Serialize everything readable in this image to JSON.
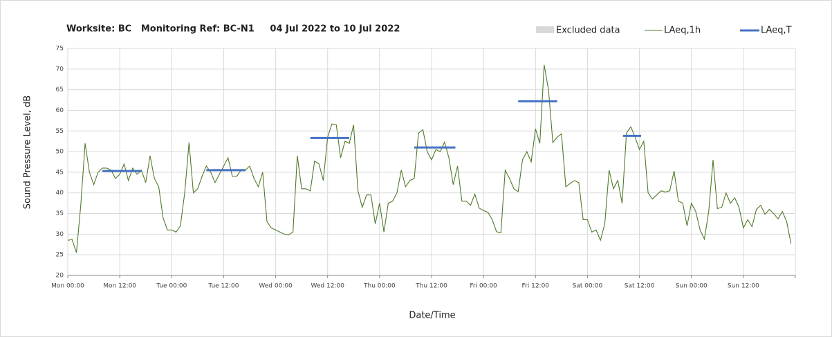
{
  "chart_data": {
    "type": "line",
    "title": "Worksite: BC   Monitoring Ref: BC-N1     04 Jul 2022 to 10 Jul 2022",
    "x_label": "Date/Time",
    "y_label": "Sound Pressure Level, dB",
    "excluded_legend": {
      "name": "Excluded data",
      "color": "#d9d9d9"
    },
    "xlim": [
      0,
      168
    ],
    "xticks": [
      {
        "value": 0,
        "label": "Mon 00:00"
      },
      {
        "value": 12,
        "label": "Mon 12:00"
      },
      {
        "value": 24,
        "label": "Tue 00:00"
      },
      {
        "value": 36,
        "label": "Tue 12:00"
      },
      {
        "value": 48,
        "label": "Wed 00:00"
      },
      {
        "value": 60,
        "label": "Wed 12:00"
      },
      {
        "value": 72,
        "label": "Thu 00:00"
      },
      {
        "value": 84,
        "label": "Thu 12:00"
      },
      {
        "value": 96,
        "label": "Fri 00:00"
      },
      {
        "value": 108,
        "label": "Fri 12:00"
      },
      {
        "value": 120,
        "label": "Sat 00:00"
      },
      {
        "value": 132,
        "label": "Sat 12:00"
      },
      {
        "value": 144,
        "label": "Sun 00:00"
      },
      {
        "value": 156,
        "label": "Sun 12:00"
      },
      168
    ],
    "ylim": [
      20,
      75
    ],
    "yticks": [
      20,
      25,
      30,
      35,
      40,
      45,
      50,
      55,
      60,
      65,
      70,
      75
    ],
    "grid": true,
    "series": [
      {
        "name": "LAeq,1h",
        "color": "#4f7a28",
        "x": [
          0,
          1,
          2,
          3,
          4,
          5,
          6,
          7,
          8,
          9,
          10,
          11,
          12,
          13,
          14,
          15,
          16,
          17,
          18,
          19,
          20,
          21,
          22,
          23,
          24,
          25,
          26,
          27,
          28,
          29,
          30,
          31,
          32,
          33,
          34,
          35,
          36,
          37,
          38,
          39,
          40,
          41,
          42,
          43,
          44,
          45,
          46,
          47,
          48,
          49,
          50,
          51,
          52,
          53,
          54,
          55,
          56,
          57,
          58,
          59,
          60,
          61,
          62,
          63,
          64,
          65,
          66,
          67,
          68,
          69,
          70,
          71,
          72,
          73,
          74,
          75,
          76,
          77,
          78,
          79,
          80,
          81,
          82,
          83,
          84,
          85,
          86,
          87,
          88,
          89,
          90,
          91,
          92,
          93,
          94,
          95,
          96,
          97,
          98,
          99,
          100,
          101,
          102,
          103,
          104,
          105,
          106,
          107,
          108,
          109,
          110,
          111,
          112,
          113,
          114,
          115,
          116,
          117,
          118,
          119,
          120,
          121,
          122,
          123,
          124,
          125,
          126,
          127,
          128,
          129,
          130,
          131,
          132,
          133,
          134,
          135,
          136,
          137,
          138,
          139,
          140,
          141,
          142,
          143,
          144,
          145,
          146,
          147,
          148,
          149,
          150,
          151,
          152,
          153,
          154,
          155,
          156,
          157,
          158,
          159,
          160,
          161,
          162,
          163,
          164,
          165,
          166,
          167
        ],
        "values": [
          28.5,
          28.7,
          25.5,
          37,
          52,
          45,
          42,
          45,
          46,
          46,
          45.5,
          43.5,
          44.5,
          47,
          43,
          46,
          44.5,
          45.5,
          42.5,
          49,
          43.5,
          41.5,
          34,
          31,
          31,
          30.5,
          32,
          40,
          52.2,
          40,
          41,
          44,
          46.5,
          45,
          42.5,
          44.5,
          46.5,
          48.5,
          44,
          44,
          45.5,
          45.5,
          46.5,
          43.5,
          41.5,
          45,
          33,
          31.5,
          31,
          30.5,
          30,
          29.8,
          30.5,
          49,
          41,
          41,
          40.5,
          47.7,
          47,
          43,
          53.5,
          56.7,
          56.5,
          48.5,
          52.5,
          52,
          56.5,
          40.5,
          36.5,
          39.5,
          39.5,
          32.5,
          37.5,
          30.5,
          37.5,
          38,
          40,
          45.5,
          41.5,
          43,
          43.5,
          54.5,
          55.3,
          50,
          48,
          50.5,
          50,
          52.3,
          48.5,
          42,
          46.5,
          38,
          38,
          37,
          39.7,
          36.3,
          35.7,
          35.3,
          33.5,
          30.6,
          30.3,
          45.5,
          43.5,
          41,
          40.3,
          48,
          50,
          47.5,
          55.5,
          52,
          71,
          65,
          52.2,
          53.5,
          54.3,
          41.5,
          42.3,
          43,
          42.5,
          33.5,
          33.5,
          30.5,
          31,
          28.5,
          32.5,
          45.5,
          41,
          43,
          37.5,
          54.5,
          56,
          53.5,
          50.5,
          52.5,
          40,
          38.5,
          39.5,
          40.5,
          40.2,
          40.5,
          45.3,
          38,
          37.5,
          32,
          37.5,
          35.5,
          31,
          28.8,
          35.5,
          48,
          36.2,
          36.5,
          40,
          37.5,
          38.8,
          36.5,
          31.5,
          33.5,
          31.8,
          36,
          37,
          34.8,
          36,
          35,
          33.7,
          35.5,
          33,
          27.7
        ]
      },
      {
        "name": "LAeq,T",
        "color": "#4472c4",
        "x": [
          [
            8,
            17
          ],
          [
            32,
            41
          ],
          [
            56,
            65
          ],
          [
            80,
            89.5
          ],
          [
            104,
            113
          ],
          [
            128.2,
            132.4
          ]
        ],
        "values": [
          45.3,
          45.5,
          53.3,
          51,
          62.2,
          53.8
        ]
      }
    ]
  }
}
